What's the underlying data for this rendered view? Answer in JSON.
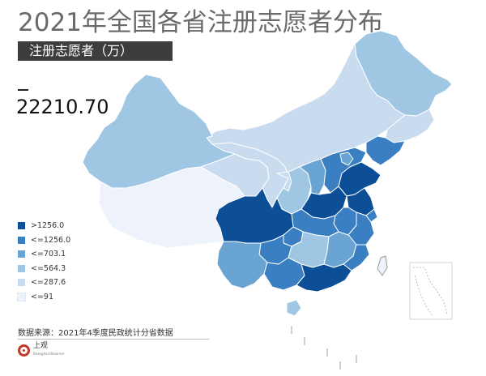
{
  "title": "2021年全国各省注册志愿者分布",
  "subtitle": "注册志愿者（万）",
  "total": "22210.70",
  "legend": [
    {
      "label": ">1256.0",
      "color": "#0d4f97"
    },
    {
      "label": "<=1256.0",
      "color": "#3a7fc1"
    },
    {
      "label": "<=703.1",
      "color": "#6aa4d3"
    },
    {
      "label": "<=564.3",
      "color": "#9fc7e3"
    },
    {
      "label": "<=287.6",
      "color": "#c9dcef"
    },
    {
      "label": "<=91",
      "color": "#eef3fb"
    }
  ],
  "source": "数据来源：2021年4季度民政统计分省数据",
  "logo": {
    "text": "上观",
    "sub": "Shanghai Observer"
  },
  "map_colors": {
    "border": "#ffffff",
    "inset_border": "#999999"
  }
}
